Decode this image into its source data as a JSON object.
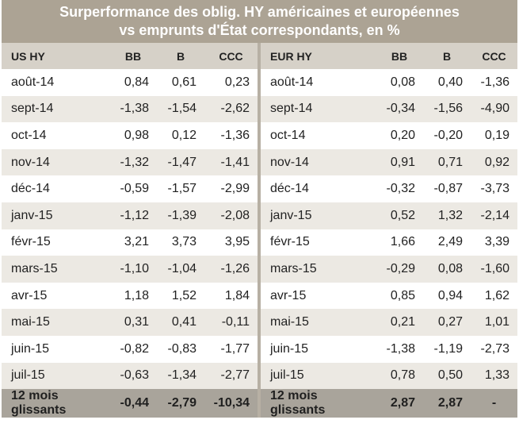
{
  "title_line1": "Surperformance des oblig. HY américaines et européennes",
  "title_line2": "vs emprunts d'État correspondants, en %",
  "left": {
    "header": [
      "US HY",
      "BB",
      "B",
      "CCC"
    ],
    "rows": [
      [
        "août-14",
        "0,84",
        "0,61",
        "0,23"
      ],
      [
        "sept-14",
        "-1,38",
        "-1,54",
        "-2,62"
      ],
      [
        "oct-14",
        "0,98",
        "0,12",
        "-1,36"
      ],
      [
        "nov-14",
        "-1,32",
        "-1,47",
        "-1,41"
      ],
      [
        "déc-14",
        "-0,59",
        "-1,57",
        "-2,99"
      ],
      [
        "janv-15",
        "-1,12",
        "-1,39",
        "-2,08"
      ],
      [
        "févr-15",
        "3,21",
        "3,73",
        "3,95"
      ],
      [
        "mars-15",
        "-1,10",
        "-1,04",
        "-1,26"
      ],
      [
        "avr-15",
        "1,18",
        "1,52",
        "1,84"
      ],
      [
        "mai-15",
        "0,31",
        "0,41",
        "-0,11"
      ],
      [
        "juin-15",
        "-0,82",
        "-0,83",
        "-1,77"
      ],
      [
        "juil-15",
        "-0,63",
        "-1,34",
        "-2,77"
      ]
    ],
    "footer": [
      "12 mois glissants",
      "-0,44",
      "-2,79",
      "-10,34"
    ]
  },
  "right": {
    "header": [
      "EUR HY",
      "BB",
      "B",
      "CCC"
    ],
    "rows": [
      [
        "août-14",
        "0,08",
        "0,40",
        "-1,36"
      ],
      [
        "sept-14",
        "-0,34",
        "-1,56",
        "-4,90"
      ],
      [
        "oct-14",
        "0,20",
        "-0,20",
        "0,19"
      ],
      [
        "nov-14",
        "0,91",
        "0,71",
        "0,92"
      ],
      [
        "déc-14",
        "-0,32",
        "-0,87",
        "-3,73"
      ],
      [
        "janv-15",
        "0,52",
        "1,32",
        "-2,14"
      ],
      [
        "févr-15",
        "1,66",
        "2,49",
        "3,39"
      ],
      [
        "mars-15",
        "-0,29",
        "0,08",
        "-1,60"
      ],
      [
        "avr-15",
        "0,85",
        "0,94",
        "1,62"
      ],
      [
        "mai-15",
        "0,21",
        "0,27",
        "1,01"
      ],
      [
        "juin-15",
        "-1,38",
        "-1,19",
        "-2,73"
      ],
      [
        "juil-15",
        "0,78",
        "0,50",
        "1,33"
      ]
    ],
    "footer": [
      "12 mois glissants",
      "2,87",
      "2,87",
      "-"
    ]
  },
  "colors": {
    "title_bg": "#aca394",
    "header_bg": "#d6d1c8",
    "alt_row_bg": "#ece9e3",
    "footer_bg": "#a9a49b"
  }
}
